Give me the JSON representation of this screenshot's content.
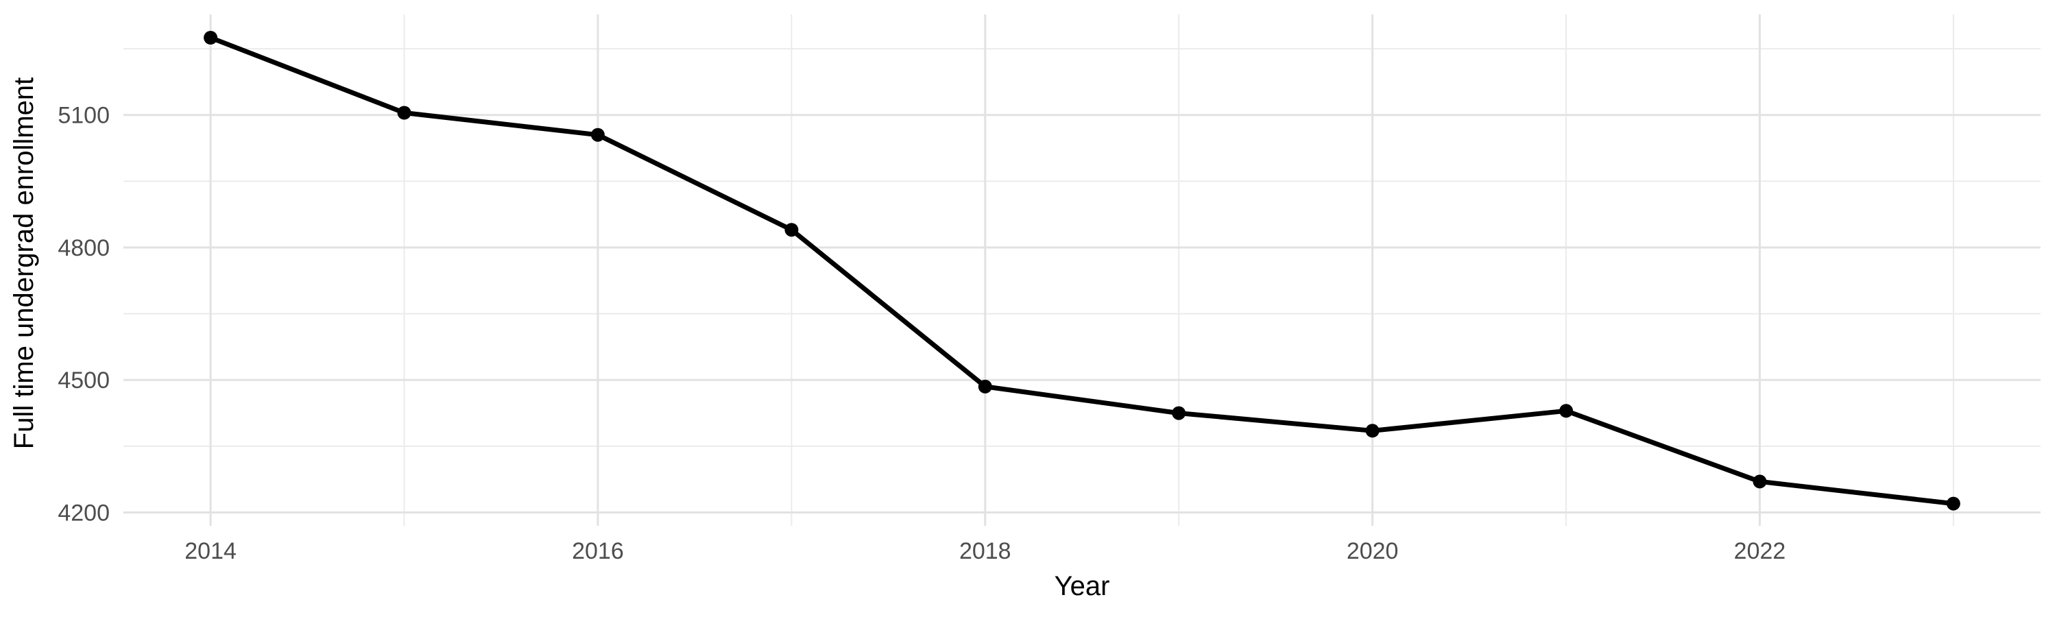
{
  "chart_data": {
    "type": "line",
    "title": "",
    "xlabel": "Year",
    "ylabel": "Full time undergrad enrollment",
    "x": [
      2014,
      2015,
      2016,
      2017,
      2018,
      2019,
      2020,
      2021,
      2022,
      2023
    ],
    "values": [
      5275,
      5105,
      5055,
      4840,
      4485,
      4425,
      4385,
      4430,
      4270,
      4220
    ],
    "series_name": "Full time undergrad enrollment",
    "x_major_ticks": [
      2014,
      2016,
      2018,
      2020,
      2022
    ],
    "x_minor_ticks": [
      2015,
      2017,
      2019,
      2021,
      2023
    ],
    "y_major_ticks": [
      4200,
      4500,
      4800,
      5100
    ],
    "y_minor_ticks": [
      4350,
      4650,
      4950,
      5250
    ],
    "xlim": [
      2013.55,
      2023.45
    ],
    "ylim": [
      4169.75,
      5327.75
    ],
    "grid": "on",
    "legend": "none",
    "marker": "filled-circle",
    "colors": {
      "line": "#000000",
      "point": "#000000",
      "grid_major": "#e2e2e2",
      "grid_minor": "#ebebeb",
      "axis_text": "#4d4d4d",
      "axis_title": "#000000",
      "background": "#ffffff"
    }
  }
}
